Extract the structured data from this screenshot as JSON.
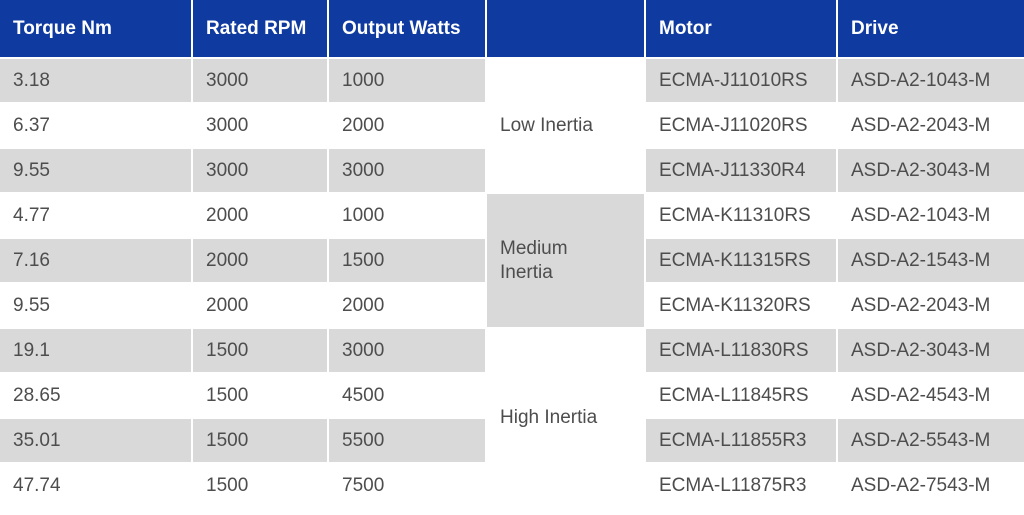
{
  "table": {
    "headers": [
      "Torque Nm",
      "Rated RPM",
      "Output Watts",
      "",
      "Motor",
      "Drive"
    ],
    "groups": [
      {
        "label": "Low Inertia"
      },
      {
        "label": "Medium Inertia"
      },
      {
        "label": "High Inertia"
      }
    ],
    "rows": [
      {
        "torque": "3.18",
        "rpm": "3000",
        "watts": "1000",
        "motor": "ECMA-J11010RS",
        "drive": "ASD-A2-1043-M"
      },
      {
        "torque": "6.37",
        "rpm": "3000",
        "watts": "2000",
        "motor": "ECMA-J11020RS",
        "drive": "ASD-A2-2043-M"
      },
      {
        "torque": "9.55",
        "rpm": "3000",
        "watts": "3000",
        "motor": "ECMA-J11330R4",
        "drive": "ASD-A2-3043-M"
      },
      {
        "torque": "4.77",
        "rpm": "2000",
        "watts": "1000",
        "motor": "ECMA-K11310RS",
        "drive": "ASD-A2-1043-M"
      },
      {
        "torque": "7.16",
        "rpm": "2000",
        "watts": "1500",
        "motor": "ECMA-K11315RS",
        "drive": "ASD-A2-1543-M"
      },
      {
        "torque": "9.55",
        "rpm": "2000",
        "watts": "2000",
        "motor": "ECMA-K11320RS",
        "drive": "ASD-A2-2043-M"
      },
      {
        "torque": "19.1",
        "rpm": "1500",
        "watts": "3000",
        "motor": "ECMA-L11830RS",
        "drive": "ASD-A2-3043-M"
      },
      {
        "torque": "28.65",
        "rpm": "1500",
        "watts": "4500",
        "motor": "ECMA-L11845RS",
        "drive": "ASD-A2-4543-M"
      },
      {
        "torque": "35.01",
        "rpm": "1500",
        "watts": "5500",
        "motor": "ECMA-L11855R3",
        "drive": "ASD-A2-5543-M"
      },
      {
        "torque": "47.74",
        "rpm": "1500",
        "watts": "7500",
        "motor": "ECMA-L11875R3",
        "drive": "ASD-A2-7543-M"
      }
    ]
  },
  "colors": {
    "header_bg": "#0f3aa0",
    "row_shade": "#d9d9d9",
    "row_light": "#f4f4f4",
    "text": "#4d4d4d"
  }
}
